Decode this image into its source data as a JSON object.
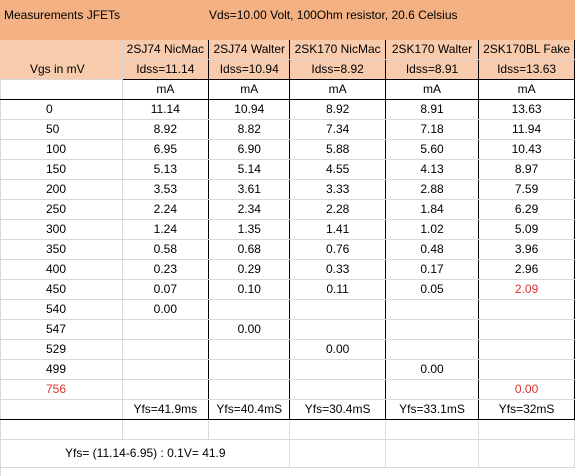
{
  "title": {
    "left": "Measurements JFETs",
    "right": "Vds=10.00 Volt, 100Ohm resistor, 20.6 Celsius"
  },
  "header": {
    "vgs_label": "Vgs in mV",
    "devices": [
      "2SJ74 NicMac",
      "2SJ74 Walter",
      "2SK170 NicMac",
      "2SK170 Walter",
      "2SK170BL Fake"
    ],
    "idss": [
      "Idss=11.14",
      "Idss=10.94",
      "Idss=8.92",
      "Idss=8.91",
      "Idss=13.63"
    ],
    "units": [
      "mA",
      "mA",
      "mA",
      "mA",
      "mA"
    ]
  },
  "rows": [
    {
      "vgs": "0",
      "v": [
        "11.14",
        "10.94",
        "8.92",
        "8.91",
        "13.63"
      ]
    },
    {
      "vgs": "50",
      "v": [
        "8.92",
        "8.82",
        "7.34",
        "7.18",
        "11.94"
      ]
    },
    {
      "vgs": "100",
      "v": [
        "6.95",
        "6.90",
        "5.88",
        "5.60",
        "10.43"
      ]
    },
    {
      "vgs": "150",
      "v": [
        "5.13",
        "5.14",
        "4.55",
        "4.13",
        "8.97"
      ]
    },
    {
      "vgs": "200",
      "v": [
        "3.53",
        "3.61",
        "3.33",
        "2.88",
        "7.59"
      ]
    },
    {
      "vgs": "250",
      "v": [
        "2.24",
        "2.34",
        "2.28",
        "1.84",
        "6.29"
      ]
    },
    {
      "vgs": "300",
      "v": [
        "1.24",
        "1.35",
        "1.41",
        "1.02",
        "5.09"
      ]
    },
    {
      "vgs": "350",
      "v": [
        "0.58",
        "0.68",
        "0.76",
        "0.48",
        "3.96"
      ]
    },
    {
      "vgs": "400",
      "v": [
        "0.23",
        "0.29",
        "0.33",
        "0.17",
        "2.96"
      ]
    },
    {
      "vgs": "450",
      "v": [
        "0.07",
        "0.10",
        "0.11",
        "0.05",
        "2.09"
      ]
    },
    {
      "vgs": "540",
      "v": [
        "0.00",
        "",
        "",
        "",
        ""
      ]
    },
    {
      "vgs": "547",
      "v": [
        "",
        "0.00",
        "",
        "",
        ""
      ]
    },
    {
      "vgs": "529",
      "v": [
        "",
        "",
        "0.00",
        "",
        ""
      ]
    },
    {
      "vgs": "499",
      "v": [
        "",
        "",
        "",
        "0.00",
        ""
      ]
    },
    {
      "vgs": "756",
      "v": [
        "",
        "",
        "",
        "",
        "0.00"
      ]
    }
  ],
  "red_cells": [
    [
      "450",
      4
    ],
    [
      "756",
      "vgs"
    ],
    [
      "756",
      4
    ]
  ],
  "yfs": [
    "Yfs=41.9ms",
    "Yfs=40.4mS",
    "Yfs=30.4mS",
    "Yfs=33.1mS",
    "Yfs=32mS"
  ],
  "formula": "Yfs= (11.14-6.95) : 0.1V= 41.9"
}
